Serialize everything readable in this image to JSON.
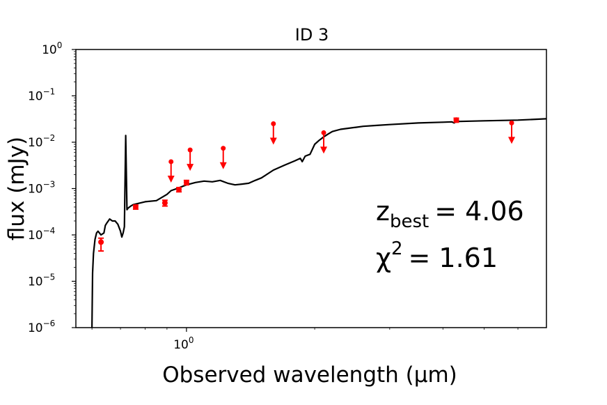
{
  "chart_data": {
    "type": "scatter",
    "title": "ID 3",
    "xlabel": "Observed wavelength (µm)",
    "ylabel": "flux (mJy)",
    "x_scale": "log",
    "y_scale": "log",
    "xlim": [
      0.55,
      7.0
    ],
    "ylim": [
      1e-06,
      1
    ],
    "x_ticks": [
      {
        "base": "10",
        "exp": "0",
        "value": 1.0
      }
    ],
    "y_ticks": [
      {
        "base": "10",
        "exp": "0",
        "value": 1
      },
      {
        "base": "10",
        "exp": "−1",
        "value": 0.1
      },
      {
        "base": "10",
        "exp": "−2",
        "value": 0.01
      },
      {
        "base": "10",
        "exp": "−3",
        "value": 0.001
      },
      {
        "base": "10",
        "exp": "−4",
        "value": 0.0001
      },
      {
        "base": "10",
        "exp": "−5",
        "value": 1e-05
      },
      {
        "base": "10",
        "exp": "−6",
        "value": 1e-06
      }
    ],
    "grid": false,
    "annotations": {
      "z_symbol": "z",
      "z_sub": "best",
      "z_value": "= 4.06",
      "chi_symbol": "χ",
      "chi_sup": "2",
      "chi_value": "= 1.61"
    },
    "model_spectrum": {
      "color": "#000000",
      "x": [
        0.6,
        0.602,
        0.605,
        0.61,
        0.615,
        0.62,
        0.63,
        0.64,
        0.645,
        0.65,
        0.66,
        0.67,
        0.68,
        0.69,
        0.7,
        0.705,
        0.71,
        0.715,
        0.72,
        0.725,
        0.73,
        0.74,
        0.75,
        0.8,
        0.85,
        0.9,
        0.92,
        0.95,
        1.0,
        1.05,
        1.1,
        1.15,
        1.2,
        1.25,
        1.3,
        1.35,
        1.4,
        1.45,
        1.5,
        1.6,
        1.7,
        1.8,
        1.85,
        1.87,
        1.9,
        1.95,
        2.0,
        2.05,
        2.1,
        2.15,
        2.2,
        2.3,
        2.4,
        2.5,
        2.6,
        2.8,
        3.0,
        3.5,
        4.0,
        4.2,
        4.25,
        4.3,
        5.0,
        6.0,
        7.0
      ],
      "y": [
        1e-06,
        1.5e-05,
        4e-05,
        8e-05,
        0.00011,
        0.00012,
        0.0001,
        0.00011,
        0.00016,
        0.00018,
        0.00022,
        0.0002,
        0.0002,
        0.00017,
        0.00012,
        9e-05,
        0.00011,
        0.00015,
        0.014,
        0.00035,
        0.00038,
        0.00042,
        0.00045,
        0.00052,
        0.00055,
        0.00075,
        0.0009,
        0.001,
        0.0012,
        0.00135,
        0.00145,
        0.0014,
        0.0015,
        0.0013,
        0.0012,
        0.00125,
        0.0013,
        0.0015,
        0.0017,
        0.0025,
        0.0032,
        0.004,
        0.0045,
        0.0038,
        0.005,
        0.0055,
        0.009,
        0.011,
        0.013,
        0.015,
        0.017,
        0.019,
        0.02,
        0.021,
        0.022,
        0.023,
        0.024,
        0.026,
        0.027,
        0.0275,
        0.026,
        0.028,
        0.029,
        0.03,
        0.032
      ]
    },
    "detections": {
      "color": "#ff0000",
      "points": [
        {
          "x": 0.63,
          "y": 7e-05,
          "ylow": 4.5e-05,
          "yhigh": 8.5e-05
        },
        {
          "x": 0.76,
          "y": 0.0004,
          "ylow": 0.00036,
          "yhigh": 0.00044
        },
        {
          "x": 0.89,
          "y": 0.00049,
          "ylow": 0.00042,
          "yhigh": 0.00056
        },
        {
          "x": 0.96,
          "y": 0.00095,
          "ylow": 0.00085,
          "yhigh": 0.00105
        },
        {
          "x": 1.0,
          "y": 0.00135,
          "ylow": 0.0012,
          "yhigh": 0.0015
        },
        {
          "x": 4.3,
          "y": 0.03,
          "ylow": 0.027,
          "yhigh": 0.033
        }
      ]
    },
    "upper_limits": {
      "color": "#ff0000",
      "points": [
        {
          "x": 0.92,
          "y": 0.0038
        },
        {
          "x": 1.02,
          "y": 0.0068
        },
        {
          "x": 1.22,
          "y": 0.0074
        },
        {
          "x": 1.6,
          "y": 0.025
        },
        {
          "x": 2.1,
          "y": 0.016
        },
        {
          "x": 5.8,
          "y": 0.026
        }
      ]
    }
  }
}
